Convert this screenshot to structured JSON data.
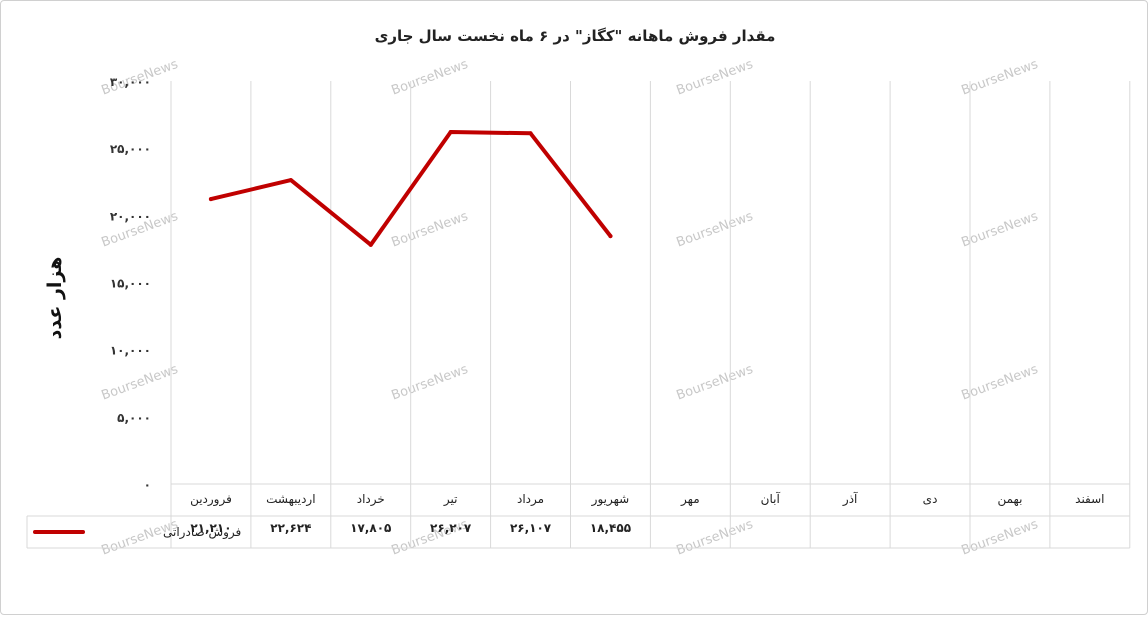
{
  "chart_data": {
    "type": "line",
    "title": "مقدار فروش ماهانه \"کگاز\" در ۶ ماه نخست سال جاری",
    "xlabel": "",
    "ylabel": "هزار عدد",
    "ylim": [
      0,
      30000
    ],
    "y_ticks": [
      0,
      5000,
      10000,
      15000,
      20000,
      25000,
      30000
    ],
    "y_tick_labels": [
      "۰",
      "۵,۰۰۰",
      "۱۰,۰۰۰",
      "۱۵,۰۰۰",
      "۲۰,۰۰۰",
      "۲۵,۰۰۰",
      "۳۰,۰۰۰"
    ],
    "categories": [
      "فروردین",
      "اردیبهشت",
      "خرداد",
      "تیر",
      "مرداد",
      "شهریور",
      "مهر",
      "آبان",
      "آذر",
      "دی",
      "بهمن",
      "اسفند"
    ],
    "series": [
      {
        "name": "فروش صادراتی",
        "color": "#c00000",
        "values": [
          21210,
          22624,
          17805,
          26207,
          26107,
          18455,
          null,
          null,
          null,
          null,
          null,
          null
        ],
        "value_labels": [
          "۲۱,۲۱۰",
          "۲۲,۶۲۴",
          "۱۷,۸۰۵",
          "۲۶,۲۰۷",
          "۲۶,۱۰۷",
          "۱۸,۴۵۵",
          "",
          "",
          "",
          "",
          "",
          ""
        ]
      }
    ],
    "grid": "vertical",
    "legend": "data-table-bottom",
    "watermark": "BourseNews"
  }
}
